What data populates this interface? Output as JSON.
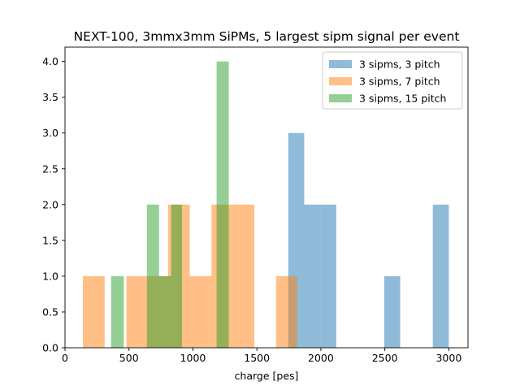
{
  "chart_data": {
    "type": "bar",
    "title": "NEXT-100, 3mmx3mm SiPMs, 5 largest sipm signal per event",
    "xlabel": "charge [pes]",
    "ylabel": "",
    "xlim": [
      0,
      3150
    ],
    "ylim": [
      0,
      4.2
    ],
    "xticks": [
      0,
      500,
      1000,
      1500,
      2000,
      2500,
      3000
    ],
    "yticks": [
      "0.0",
      "0.5",
      "1.0",
      "1.5",
      "2.0",
      "2.5",
      "3.0",
      "3.5",
      "4.0"
    ],
    "legend_position": "top-right",
    "grid": false,
    "series": [
      {
        "name": "3 sipms, 3 pitch",
        "color": "#1f77b4",
        "opacity": 0.5,
        "bins": [
          {
            "x0": 1745,
            "x1": 1870,
            "value": 3
          },
          {
            "x0": 1870,
            "x1": 1995,
            "value": 2
          },
          {
            "x0": 1995,
            "x1": 2120,
            "value": 2
          },
          {
            "x0": 2495,
            "x1": 2620,
            "value": 1
          },
          {
            "x0": 2875,
            "x1": 3000,
            "value": 2
          }
        ]
      },
      {
        "name": "3 sipms, 7 pitch",
        "color": "#ff7f0e",
        "opacity": 0.5,
        "bins": [
          {
            "x0": 140,
            "x1": 310,
            "value": 1
          },
          {
            "x0": 480,
            "x1": 640,
            "value": 1
          },
          {
            "x0": 640,
            "x1": 805,
            "value": 1
          },
          {
            "x0": 805,
            "x1": 975,
            "value": 2
          },
          {
            "x0": 975,
            "x1": 1145,
            "value": 1
          },
          {
            "x0": 1145,
            "x1": 1310,
            "value": 2
          },
          {
            "x0": 1310,
            "x1": 1480,
            "value": 2
          },
          {
            "x0": 1650,
            "x1": 1815,
            "value": 1
          }
        ]
      },
      {
        "name": "3 sipms, 15 pitch",
        "color": "#2ca02c",
        "opacity": 0.5,
        "bins": [
          {
            "x0": 360,
            "x1": 460,
            "value": 1
          },
          {
            "x0": 640,
            "x1": 735,
            "value": 2
          },
          {
            "x0": 735,
            "x1": 830,
            "value": 1
          },
          {
            "x0": 830,
            "x1": 915,
            "value": 2
          },
          {
            "x0": 1185,
            "x1": 1280,
            "value": 4
          }
        ]
      }
    ]
  }
}
